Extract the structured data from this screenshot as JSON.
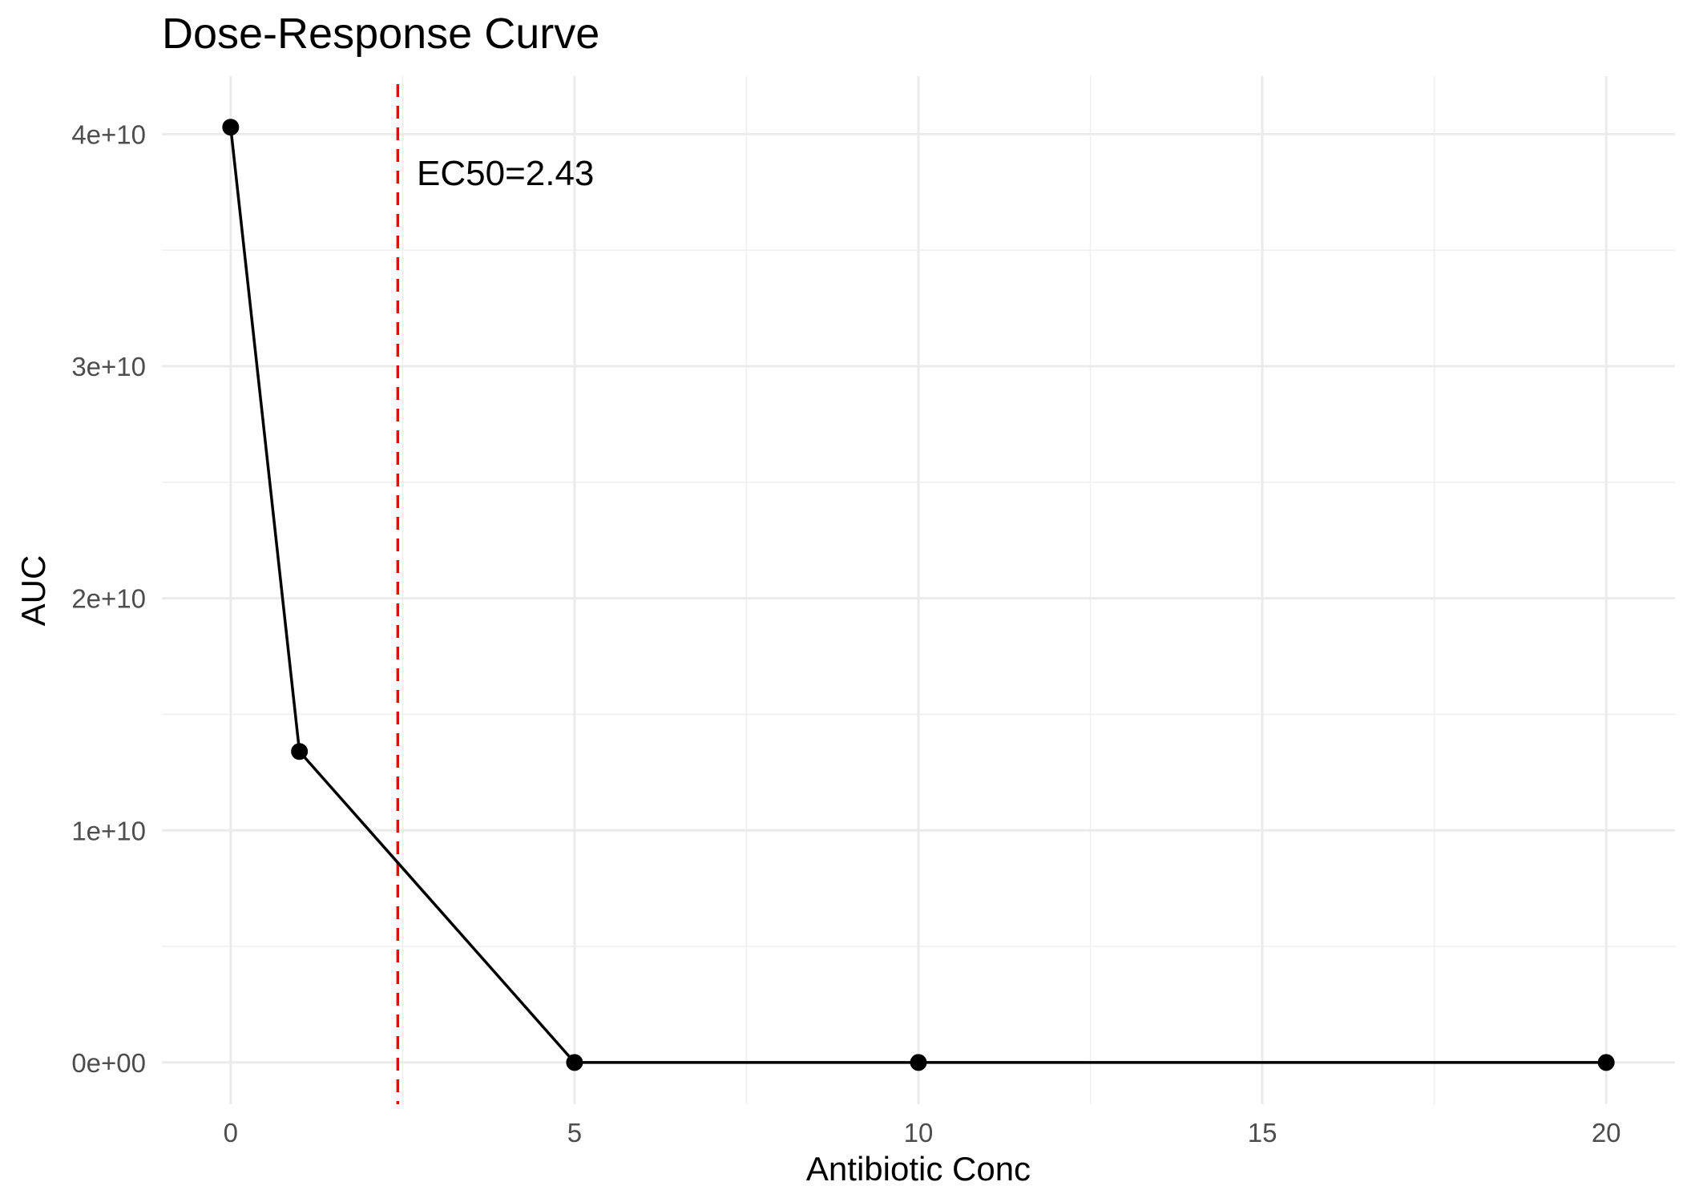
{
  "chart_data": {
    "type": "line",
    "title": "Dose-Response Curve",
    "xlabel": "Antibiotic Conc",
    "ylabel": "AUC",
    "x": [
      0,
      1,
      5,
      10,
      20
    ],
    "series": [
      {
        "values": [
          40300000000,
          13400000000,
          0,
          0,
          0
        ],
        "color": "#000000"
      }
    ],
    "xlim": [
      -1,
      21
    ],
    "ylim": [
      -1800000000,
      42500000000
    ],
    "x_ticks": [
      0,
      5,
      10,
      15,
      20
    ],
    "x_tick_labels": [
      "0",
      "5",
      "10",
      "15",
      "20"
    ],
    "y_ticks": [
      0,
      10000000000,
      20000000000,
      30000000000,
      40000000000
    ],
    "y_tick_labels": [
      "0e+00",
      "1e+10",
      "2e+10",
      "3e+10",
      "4e+10"
    ],
    "grid": true,
    "reference_line": {
      "x": 2.43,
      "color": "#ff0000",
      "style": "dashed"
    },
    "annotation": {
      "text": "EC50=2.43",
      "x": 2.7,
      "y": 38000000000
    }
  }
}
